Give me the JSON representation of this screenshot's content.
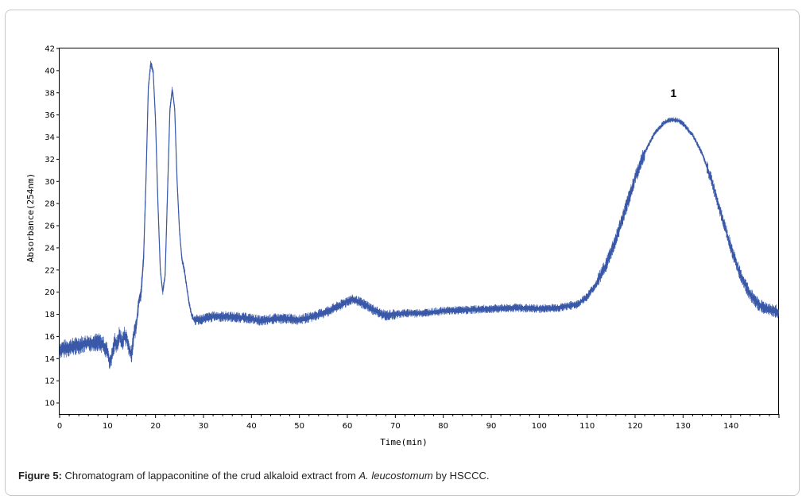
{
  "chart_data": {
    "type": "line",
    "xlabel": "Time(min)",
    "ylabel": "Absorbance(254nm)",
    "xlim": [
      0,
      150
    ],
    "ylim": [
      9,
      42
    ],
    "xticks": [
      "0",
      "10",
      "20",
      "30",
      "40",
      "50",
      "60",
      "70",
      "80",
      "90",
      "100",
      "110",
      "120",
      "130",
      "140"
    ],
    "yticks": [
      "10",
      "12",
      "14",
      "16",
      "18",
      "20",
      "22",
      "24",
      "26",
      "28",
      "30",
      "32",
      "34",
      "36",
      "38",
      "40",
      "42"
    ],
    "grid": false,
    "line_color": "#3a58a8",
    "annotations": [
      {
        "text": "1",
        "x": 128,
        "y": 38
      }
    ],
    "series": [
      {
        "x": [
          0,
          2,
          4,
          6,
          8,
          9,
          10,
          10.5,
          11,
          11.5,
          12,
          12.5,
          13,
          13.5,
          14,
          14.5,
          15,
          15.5,
          16,
          16.5,
          17,
          17.5,
          18,
          18.5,
          19,
          19.5,
          20,
          20.5,
          21,
          21.5,
          22,
          22.5,
          23,
          23.5,
          24,
          24.5,
          25,
          25.5,
          26,
          26.5,
          27,
          27.5,
          28,
          29,
          30,
          32,
          35,
          38,
          40,
          42,
          45,
          48,
          50,
          52,
          55,
          57,
          59,
          60,
          61,
          62,
          63,
          64,
          65,
          66,
          67,
          68,
          70,
          72,
          75,
          78,
          80,
          85,
          90,
          95,
          100,
          104,
          108,
          110,
          112,
          114,
          116,
          118,
          120,
          122,
          124,
          126,
          127,
          128,
          129,
          130,
          132,
          134,
          136,
          138,
          140,
          142,
          144,
          146,
          148,
          150
        ],
        "y": [
          14.8,
          15.0,
          15.2,
          15.4,
          15.5,
          15.3,
          14.6,
          13.5,
          14.4,
          15.6,
          15.2,
          16.2,
          15.4,
          16.1,
          15.8,
          14.8,
          14.3,
          16.3,
          17.0,
          19.2,
          20.0,
          23.0,
          30.0,
          38.5,
          40.6,
          40.0,
          35.5,
          28.0,
          22.0,
          20.0,
          21.5,
          29.0,
          36.5,
          38.3,
          36.5,
          30.0,
          25.5,
          23.0,
          22.0,
          20.5,
          19.0,
          18.0,
          17.5,
          17.5,
          17.6,
          17.8,
          17.8,
          17.7,
          17.6,
          17.4,
          17.6,
          17.6,
          17.5,
          17.7,
          18.1,
          18.5,
          18.9,
          19.2,
          19.3,
          19.2,
          19.0,
          18.8,
          18.5,
          18.3,
          18.0,
          17.9,
          18.0,
          18.1,
          18.1,
          18.2,
          18.3,
          18.4,
          18.5,
          18.6,
          18.5,
          18.6,
          18.9,
          19.6,
          20.8,
          22.5,
          24.8,
          27.5,
          30.3,
          32.6,
          34.3,
          35.3,
          35.5,
          35.55,
          35.5,
          35.2,
          34.2,
          32.5,
          30.0,
          27.0,
          24.0,
          21.5,
          19.8,
          18.8,
          18.4,
          18.2
        ]
      }
    ]
  },
  "caption": {
    "label": "Figure 5:",
    "text_before": " Chromatogram of lappaconitine of the crud alkaloid extract from ",
    "species": "A. leucostomum",
    "text_after": " by HSCCC."
  }
}
